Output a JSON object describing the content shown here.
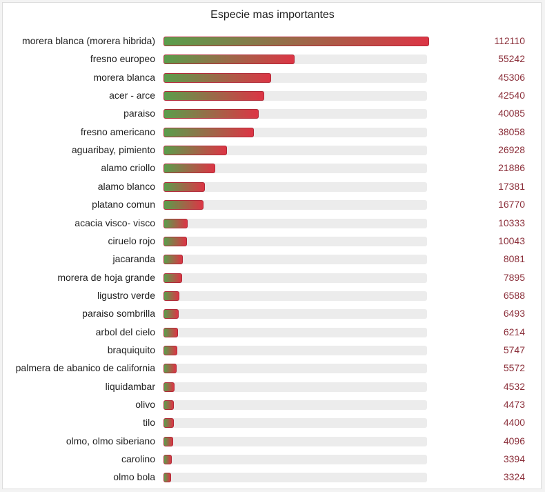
{
  "chart_data": {
    "type": "bar",
    "orientation": "horizontal",
    "title": "Especie mas importantes",
    "categories": [
      "morera blanca (morera hibrida)",
      "fresno europeo",
      "morera blanca",
      "acer - arce",
      "paraiso",
      "fresno americano",
      "aguaribay, pimiento",
      "alamo criollo",
      "alamo blanco",
      "platano comun",
      "acacia visco- visco",
      "ciruelo rojo",
      "jacaranda",
      "morera de hoja grande",
      "ligustro verde",
      "paraiso sombrilla",
      "arbol del cielo",
      "braquiquito",
      "palmera de abanico de california",
      "liquidambar",
      "olivo",
      "tilo",
      "olmo, olmo siberiano",
      "carolino",
      "olmo bola"
    ],
    "values": [
      112110,
      55242,
      45306,
      42540,
      40085,
      38058,
      26928,
      21886,
      17381,
      16770,
      10333,
      10043,
      8081,
      7895,
      6588,
      6493,
      6214,
      5747,
      5572,
      4532,
      4473,
      4400,
      4096,
      3394,
      3324
    ],
    "xlim": [
      0,
      112110
    ],
    "grid": false,
    "legend": "none"
  },
  "colors": {
    "bar_start": "#5a9e4b",
    "bar_end": "#dc3545",
    "bar_border": "#b02a37",
    "track": "#ececec",
    "value_text": "#8b2f3a",
    "label_text": "#1f1f1f"
  }
}
